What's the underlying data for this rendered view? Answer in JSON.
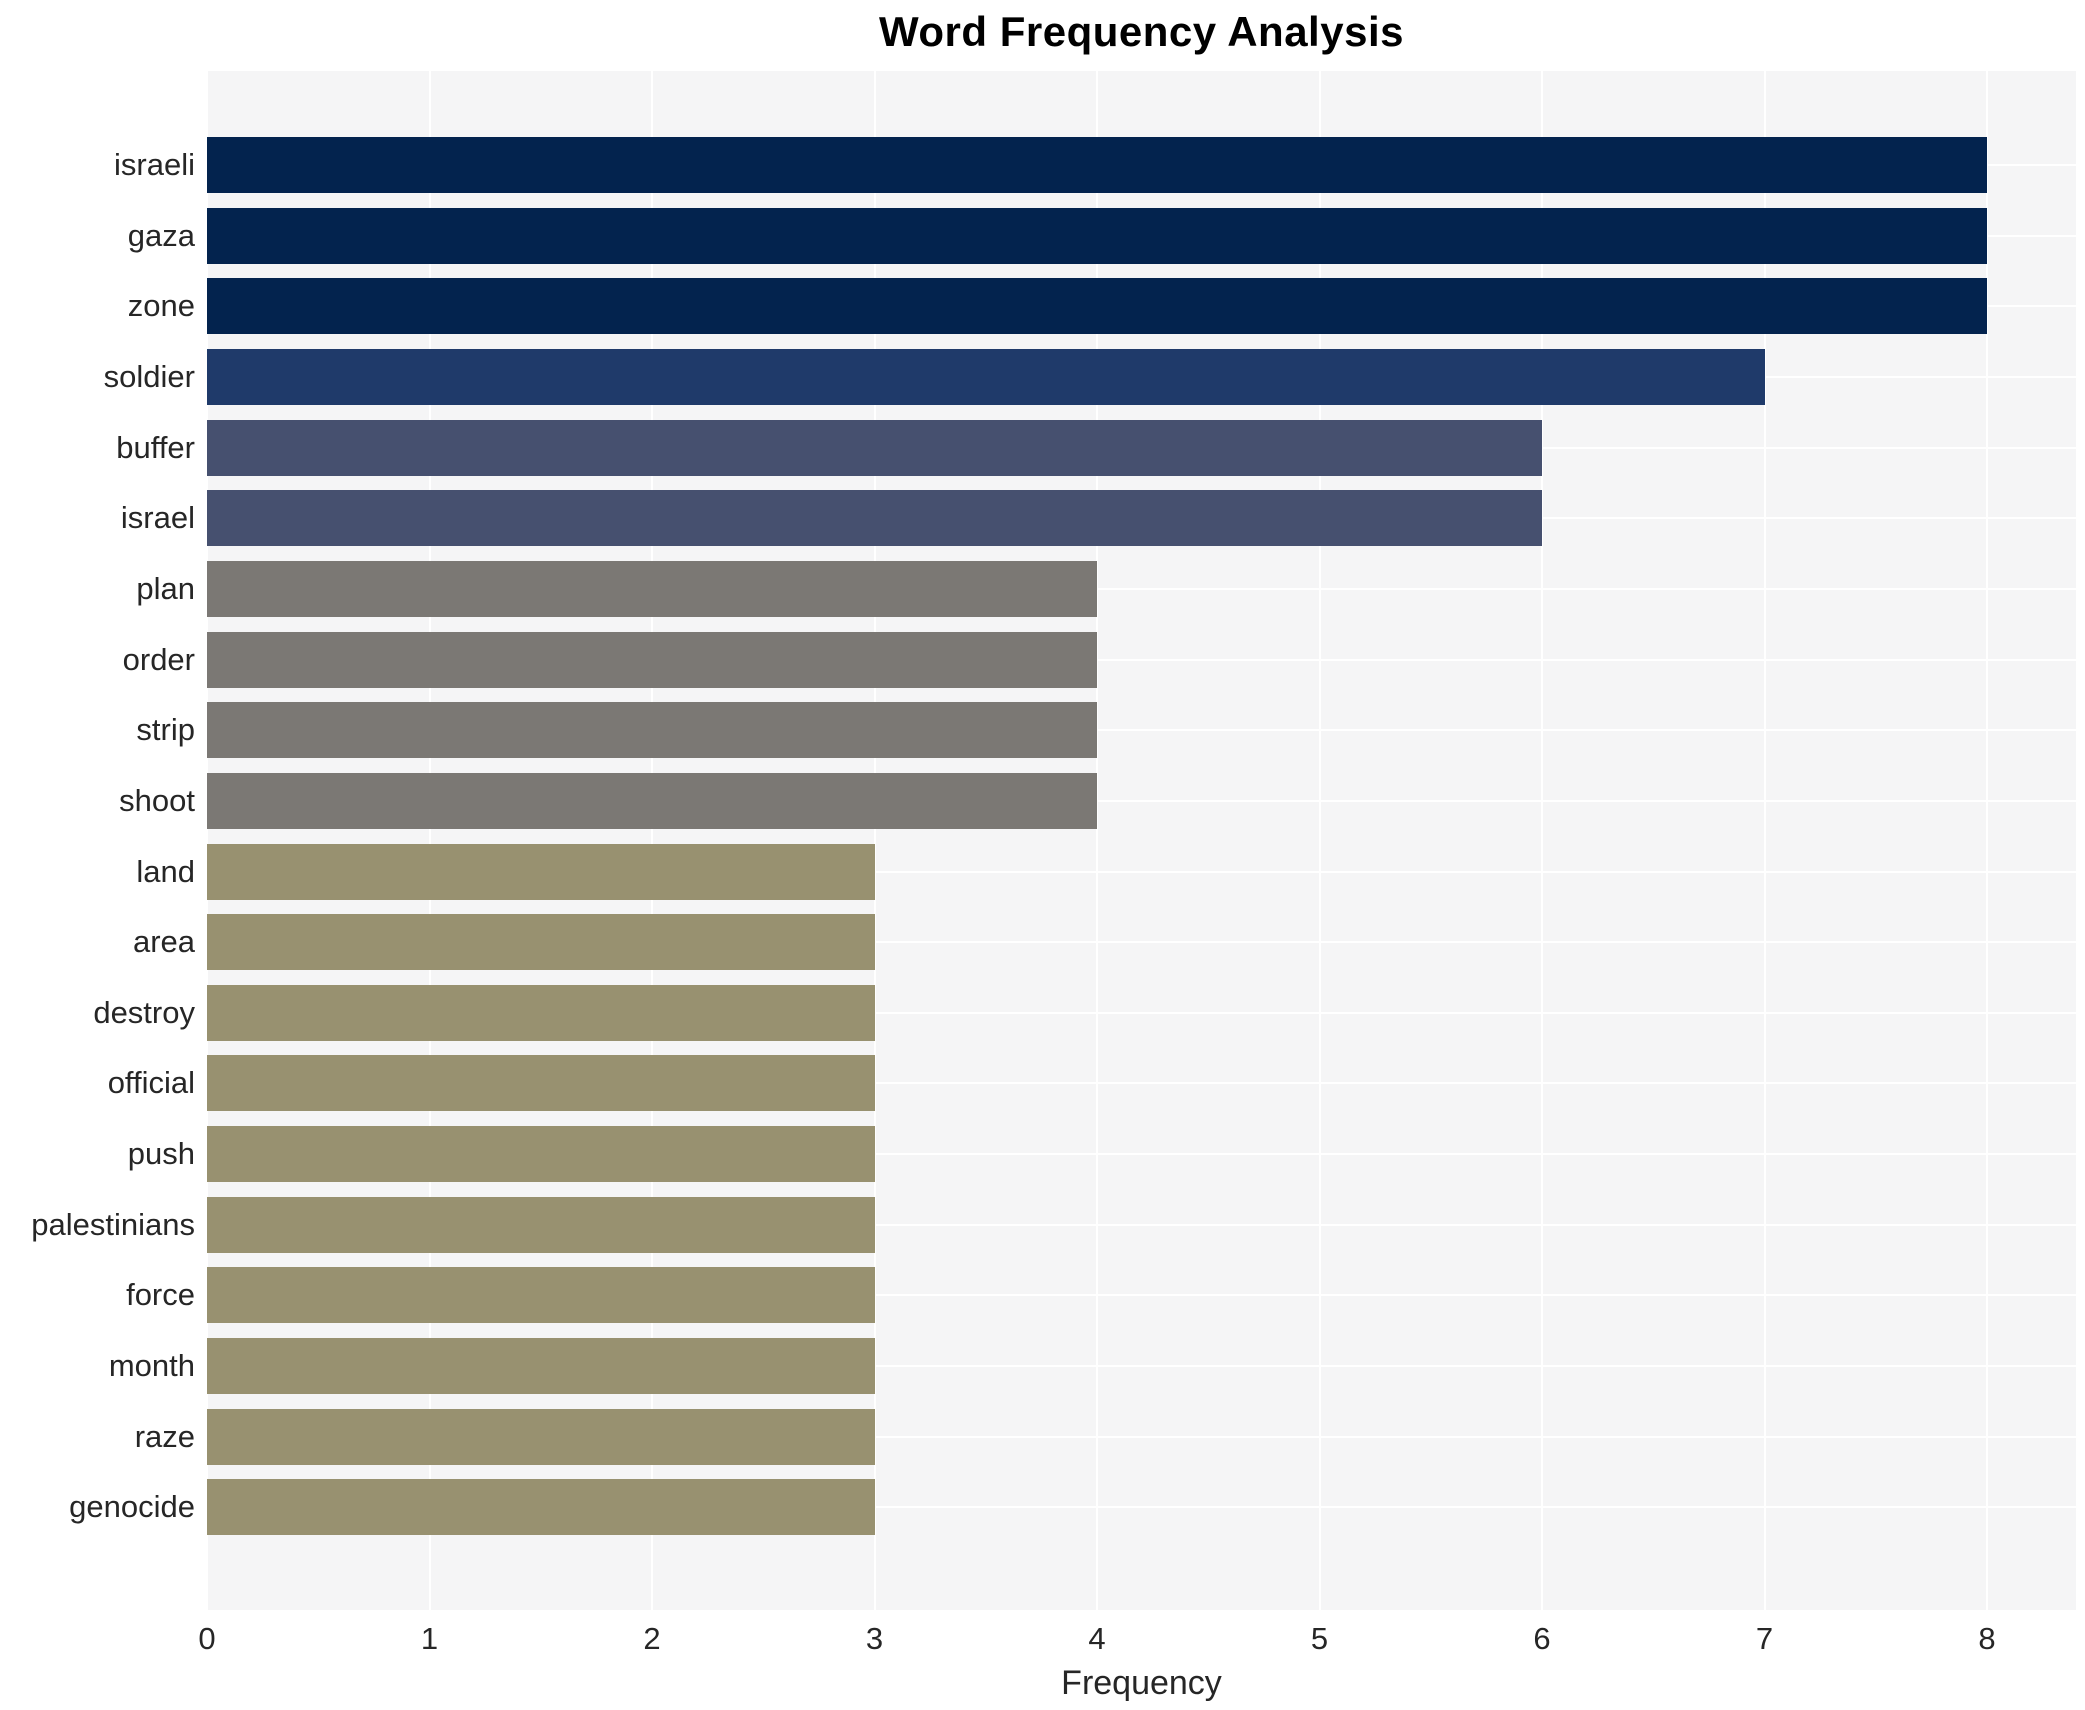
{
  "header": {
    "title": "Word Frequency Analysis"
  },
  "chart_data": {
    "type": "bar",
    "orientation": "horizontal",
    "title": "Word Frequency Analysis",
    "xlabel": "Frequency",
    "ylabel": "",
    "categories": [
      "israeli",
      "gaza",
      "zone",
      "soldier",
      "buffer",
      "israel",
      "plan",
      "order",
      "strip",
      "shoot",
      "land",
      "area",
      "destroy",
      "official",
      "push",
      "palestinians",
      "force",
      "month",
      "raze",
      "genocide"
    ],
    "values": [
      8,
      8,
      8,
      7,
      6,
      6,
      4,
      4,
      4,
      4,
      3,
      3,
      3,
      3,
      3,
      3,
      3,
      3,
      3,
      3
    ],
    "x_ticks": [
      0,
      1,
      2,
      3,
      4,
      5,
      6,
      7,
      8
    ],
    "xlim": [
      0,
      8.4
    ],
    "grid": true,
    "legend": false,
    "colors": {
      "bar_color_by_value": {
        "8": "#03234e",
        "7": "#1f3a6a",
        "6": "#46506f",
        "4": "#7b7874",
        "3": "#989170"
      },
      "panel_background": "#f5f5f6",
      "gridline": "#ffffff",
      "tick_label": "#262626",
      "title": "#000000"
    }
  }
}
